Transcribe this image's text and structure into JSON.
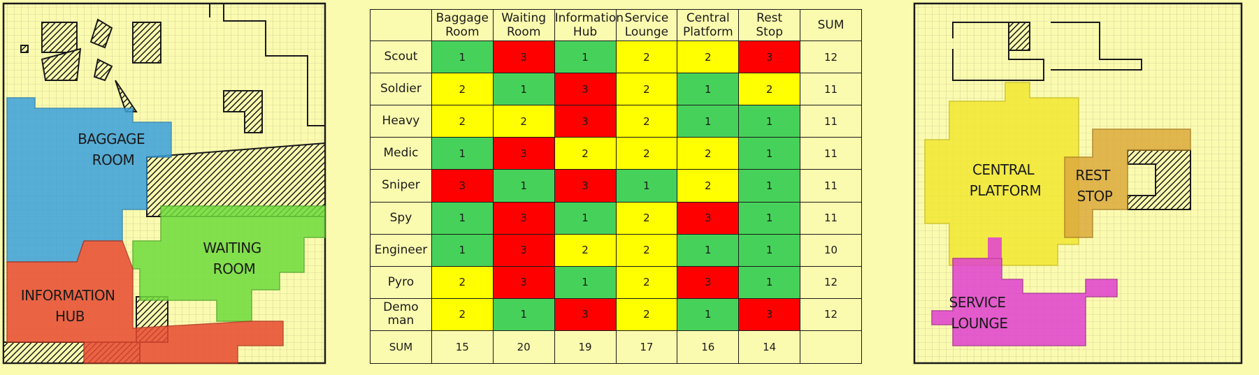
{
  "map_left": {
    "areas": [
      {
        "id": "baggage",
        "label_lines": [
          "BAGGAGE",
          "ROOM"
        ],
        "color": "#3aa0dc"
      },
      {
        "id": "waiting",
        "label_lines": [
          "WAITING",
          "ROOM"
        ],
        "color": "#6fdc3c"
      },
      {
        "id": "info",
        "label_lines": [
          "INFORMATION",
          "HUB"
        ],
        "color": "#e84a32"
      }
    ]
  },
  "map_right": {
    "areas": [
      {
        "id": "central",
        "label_lines": [
          "CENTRAL",
          "PLATFORM"
        ],
        "color": "#f2e832"
      },
      {
        "id": "rest",
        "label_lines": [
          "REST",
          "STOP"
        ],
        "color": "#dcaa3c"
      },
      {
        "id": "service",
        "label_lines": [
          "SERVICE",
          "LOUNGE"
        ],
        "color": "#e040d2"
      }
    ]
  },
  "table": {
    "columns": [
      [
        "Baggage",
        "Room"
      ],
      [
        "Waiting",
        "Room"
      ],
      [
        "Information",
        "Hub"
      ],
      [
        "Service",
        "Lounge"
      ],
      [
        "Central",
        "Platform"
      ],
      [
        "Rest",
        "Stop"
      ],
      [
        "SUM"
      ]
    ],
    "rows": [
      {
        "name": "Scout",
        "values": [
          1,
          3,
          1,
          2,
          2,
          3
        ],
        "sum": "12"
      },
      {
        "name": "Soldier",
        "values": [
          2,
          1,
          3,
          2,
          1,
          2
        ],
        "sum": "11"
      },
      {
        "name": "Heavy",
        "values": [
          2,
          2,
          3,
          2,
          1,
          1
        ],
        "sum": "11"
      },
      {
        "name": "Medic",
        "values": [
          1,
          3,
          2,
          2,
          2,
          1
        ],
        "sum": "11"
      },
      {
        "name": "Sniper",
        "values": [
          3,
          1,
          3,
          1,
          2,
          1
        ],
        "sum": "11"
      },
      {
        "name": "Spy",
        "values": [
          1,
          3,
          1,
          2,
          3,
          1
        ],
        "sum": "11"
      },
      {
        "name": "Engineer",
        "values": [
          1,
          3,
          2,
          2,
          1,
          1
        ],
        "sum": "10"
      },
      {
        "name": "Pyro",
        "values": [
          2,
          3,
          1,
          2,
          3,
          1
        ],
        "sum": "12"
      },
      {
        "name": "Demo\nman",
        "values": [
          2,
          1,
          3,
          2,
          1,
          3
        ],
        "sum": "12"
      }
    ],
    "footer": {
      "label": "SUM",
      "values": [
        "15",
        "20",
        "19",
        "17",
        "16",
        "14"
      ]
    },
    "value_colors": {
      "1": "#46d25a",
      "2": "#ffff00",
      "3": "#ff0000"
    }
  }
}
